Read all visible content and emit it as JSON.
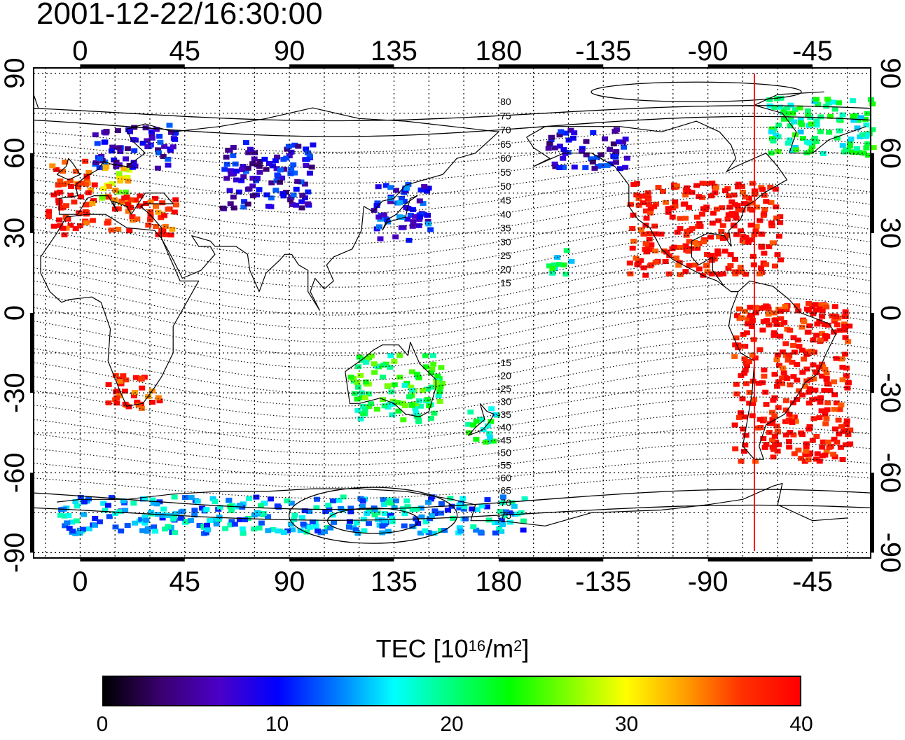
{
  "title": "2001-12-22/16:30:00",
  "colorbar": {
    "label_prefix": "TEC  [10",
    "label_exp1": "16",
    "label_mid": "/m",
    "label_exp2": "2",
    "label_suffix": "]",
    "ticks": [
      "0",
      "10",
      "20",
      "30",
      "40"
    ],
    "range": [
      0,
      40
    ],
    "colors": [
      "#000000",
      "#3a0070",
      "#4b00c8",
      "#0000ff",
      "#0078ff",
      "#00ffff",
      "#00ff7a",
      "#00ff00",
      "#7fff00",
      "#ffff00",
      "#ffa000",
      "#ff3000",
      "#ff0000"
    ]
  },
  "axes": {
    "top_lon_labels": [
      "0",
      "45",
      "90",
      "135",
      "180",
      "-135",
      "-90",
      "-45"
    ],
    "bottom_lon_labels": [
      "0",
      "45",
      "90",
      "135",
      "180",
      "-135",
      "-90",
      "-45"
    ],
    "lat_labels": [
      "90",
      "60",
      "30",
      "0",
      "-30",
      "-60",
      "-90"
    ],
    "lon_range": [
      -20,
      340
    ],
    "lat_range": [
      -92,
      92
    ]
  },
  "contour_labels_north": [
    "80",
    "75",
    "70",
    "65",
    "60",
    "55",
    "50",
    "45",
    "40",
    "35",
    "30",
    "25",
    "20",
    "15"
  ],
  "contour_labels_south": [
    "-15",
    "-20",
    "-25",
    "-30",
    "-35",
    "-40",
    "-45",
    "-50",
    "-55",
    "-60",
    "-65",
    "-70",
    "-75"
  ],
  "marker_line": {
    "lon": -70,
    "color": "#ff0000"
  },
  "map_data": {
    "type": "heatmap",
    "variable": "TEC",
    "unit": "10^16/m^2",
    "regions": [
      {
        "name": "Europe W",
        "lon": [
          -15,
          5
        ],
        "lat": [
          30,
          58
        ],
        "tec": 38
      },
      {
        "name": "Europe central",
        "lon": [
          5,
          20
        ],
        "lat": [
          42,
          58
        ],
        "tec": 30
      },
      {
        "name": "Scandinavia",
        "lon": [
          5,
          40
        ],
        "lat": [
          55,
          72
        ],
        "tec": 8
      },
      {
        "name": "Mediterranean",
        "lon": [
          10,
          40
        ],
        "lat": [
          30,
          45
        ],
        "tec": 38
      },
      {
        "name": "Russia",
        "lon": [
          60,
          100
        ],
        "lat": [
          40,
          65
        ],
        "tec": 8
      },
      {
        "name": "Japan",
        "lon": [
          125,
          150
        ],
        "lat": [
          28,
          50
        ],
        "tec": 10
      },
      {
        "name": "Alaska",
        "lon": [
          200,
          235
        ],
        "lat": [
          55,
          70
        ],
        "tec": 8
      },
      {
        "name": "North America",
        "lon": [
          235,
          300
        ],
        "lat": [
          15,
          50
        ],
        "tec": 40
      },
      {
        "name": "Hawaii",
        "lon": [
          200,
          210
        ],
        "lat": [
          15,
          25
        ],
        "tec": 20
      },
      {
        "name": "South America",
        "lon": [
          280,
          330
        ],
        "lat": [
          -55,
          5
        ],
        "tec": 40
      },
      {
        "name": "South Africa",
        "lon": [
          10,
          35
        ],
        "lat": [
          -35,
          -22
        ],
        "tec": 38
      },
      {
        "name": "Australia",
        "lon": [
          115,
          155
        ],
        "lat": [
          -40,
          -15
        ],
        "tec": 22
      },
      {
        "name": "New Zealand",
        "lon": [
          165,
          178
        ],
        "lat": [
          -48,
          -35
        ],
        "tec": 20
      },
      {
        "name": "Antarctica",
        "lon": [
          -10,
          190
        ],
        "lat": [
          -82,
          -68
        ],
        "tec": 15
      },
      {
        "name": "Greenland",
        "lon": [
          295,
          340
        ],
        "lat": [
          60,
          82
        ],
        "tec": 20
      }
    ]
  }
}
